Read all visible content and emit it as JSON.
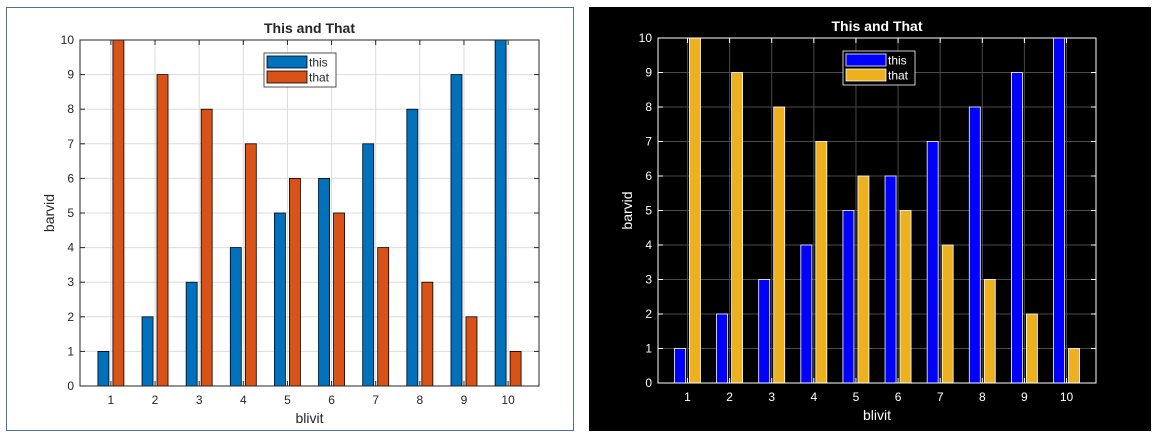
{
  "chart_data": [
    {
      "type": "bar",
      "theme": "light",
      "title": "This and That",
      "xlabel": "blivit",
      "ylabel": "barvid",
      "categories": [
        "1",
        "2",
        "3",
        "4",
        "5",
        "6",
        "7",
        "8",
        "9",
        "10"
      ],
      "series": [
        {
          "name": "this",
          "values": [
            1,
            2,
            3,
            4,
            5,
            6,
            7,
            8,
            9,
            10
          ],
          "color": "#0072bd"
        },
        {
          "name": "that",
          "values": [
            10,
            9,
            8,
            7,
            6,
            5,
            4,
            3,
            2,
            1
          ],
          "color": "#d95319"
        }
      ],
      "ylim": [
        0,
        10
      ],
      "yticks": [
        "0",
        "1",
        "2",
        "3",
        "4",
        "5",
        "6",
        "7",
        "8",
        "9",
        "10"
      ],
      "grid": true,
      "legend": "top-center",
      "colors": {
        "background": "#ffffff",
        "axes": "#262626",
        "grid": "#dcdcdc",
        "text": "#262626",
        "bar_edge": "#000000"
      }
    },
    {
      "type": "bar",
      "theme": "dark",
      "title": "This and That",
      "xlabel": "blivit",
      "ylabel": "barvid",
      "categories": [
        "1",
        "2",
        "3",
        "4",
        "5",
        "6",
        "7",
        "8",
        "9",
        "10"
      ],
      "series": [
        {
          "name": "this",
          "values": [
            1,
            2,
            3,
            4,
            5,
            6,
            7,
            8,
            9,
            10
          ],
          "color": "#0000ff"
        },
        {
          "name": "that",
          "values": [
            10,
            9,
            8,
            7,
            6,
            5,
            4,
            3,
            2,
            1
          ],
          "color": "#edb120"
        }
      ],
      "ylim": [
        0,
        10
      ],
      "yticks": [
        "0",
        "1",
        "2",
        "3",
        "4",
        "5",
        "6",
        "7",
        "8",
        "9",
        "10"
      ],
      "grid": true,
      "legend": "top-center",
      "colors": {
        "background": "#000000",
        "axes": "#ffffff",
        "grid": "#4a4a4a",
        "text": "#ffffff",
        "bar_edge": "#ffffff"
      }
    }
  ]
}
